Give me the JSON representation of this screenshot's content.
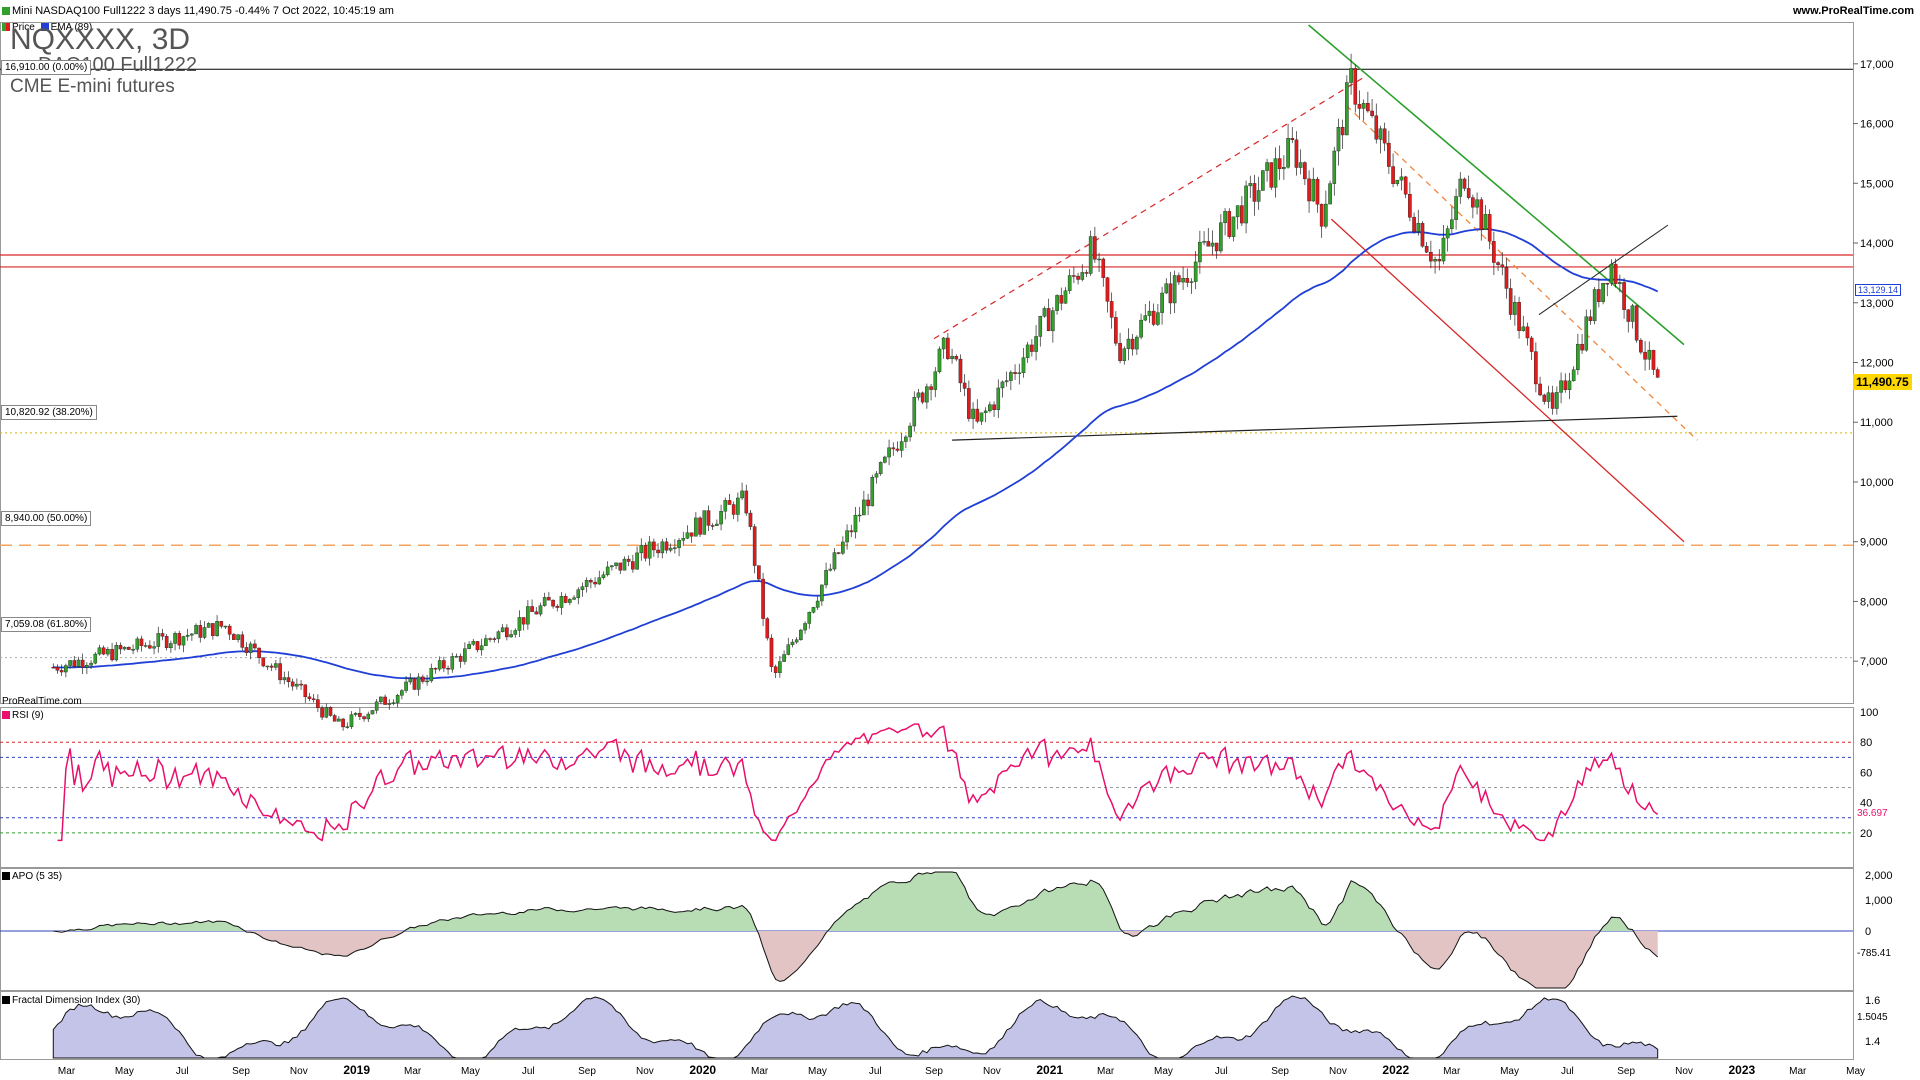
{
  "header": {
    "instrument": "Mini NASDAQ100 Full1222 3 days 11,490.75 -0.44% 7 Oct 2022, 10:45:19 am",
    "site": "www.ProRealTime.com",
    "watermark_symbol": "NQXXXX, 3D",
    "watermark_name": "DAQ100 Full1222",
    "watermark_desc": "CME E-mini futures",
    "legend_price": "Price",
    "legend_ema": "EMA (89)",
    "footer_brand": "ProRealTime.com"
  },
  "colors": {
    "up": "#33a02c",
    "down": "#e31a1c",
    "ema": "#1f3fd6",
    "rsi": "#e8106a",
    "resistance": "#d62728",
    "fib_dash": "#f4a460",
    "green_line": "#2ca02c",
    "apo_pos": "#b8dcb4",
    "apo_neg": "#e2c4c4",
    "fdi_fill": "#c4c4e8"
  },
  "levels": {
    "top_box": "16,910.00 (0.00%)",
    "fib_382": "10,820.92 (38.20%)",
    "fib_500": "8,940.00 (50.00%)",
    "fib_618": "7,059.08 (61.80%)",
    "ema_label": "13,129.14",
    "price_label": "11,490.75",
    "rsi_label": "36.697",
    "apo_label": "-785.41",
    "fdi_label": "1.5045"
  },
  "indicators": {
    "rsi_title": "RSI (9)",
    "apo_title": "APO (5 35)",
    "fdi_title": "Fractal Dimension Index (30)"
  },
  "price_axis": [
    "17,000",
    "16,000",
    "15,000",
    "14,000",
    "13,000",
    "12,000",
    "11,000",
    "10,000",
    "9,000",
    "8,000",
    "7,000"
  ],
  "rsi_axis": [
    "100",
    "80",
    "60",
    "40",
    "20"
  ],
  "apo_axis": [
    "2,000",
    "1,000",
    "0"
  ],
  "fdi_axis": [
    "1.6",
    "1.4"
  ],
  "time_axis": [
    "Mar",
    "May",
    "Jul",
    "Sep",
    "Nov",
    "2019",
    "Mar",
    "May",
    "Jul",
    "Sep",
    "Nov",
    "2020",
    "Mar",
    "May",
    "Jul",
    "Sep",
    "Nov",
    "2021",
    "Mar",
    "May",
    "Jul",
    "Sep",
    "Nov",
    "2022",
    "Mar",
    "May",
    "Jul",
    "Sep",
    "Nov",
    "2023",
    "Mar",
    "May"
  ],
  "chart_data": {
    "type": "candlestick",
    "title": "Mini NASDAQ100 Full1222 3 days",
    "y_range": [
      6300,
      17700
    ],
    "key_points": [
      {
        "date": "2018-02",
        "price": 6900
      },
      {
        "date": "2018-08",
        "price": 7600
      },
      {
        "date": "2018-12",
        "price": 5900
      },
      {
        "date": "2019-07",
        "price": 7900
      },
      {
        "date": "2020-02",
        "price": 9700
      },
      {
        "date": "2020-03",
        "price": 6700
      },
      {
        "date": "2020-09",
        "price": 12300
      },
      {
        "date": "2020-10",
        "price": 10900
      },
      {
        "date": "2021-02",
        "price": 13900
      },
      {
        "date": "2021-03",
        "price": 12200
      },
      {
        "date": "2021-09",
        "price": 15600
      },
      {
        "date": "2021-10",
        "price": 14500
      },
      {
        "date": "2021-11",
        "price": 16700
      },
      {
        "date": "2022-02",
        "price": 13600
      },
      {
        "date": "2022-03",
        "price": 15200
      },
      {
        "date": "2022-06",
        "price": 11100
      },
      {
        "date": "2022-08",
        "price": 13700
      },
      {
        "date": "2022-10",
        "price": 11490.75
      }
    ],
    "ema_89": {
      "last": 13129.14
    },
    "horizontal_levels": [
      16910,
      13800,
      13600,
      10820.92,
      8940,
      7059.08
    ],
    "rsi_9": {
      "last": 36.697,
      "levels": [
        80,
        70,
        50,
        30,
        20
      ]
    },
    "apo_5_35": {
      "last": -785.41
    },
    "fdi_30": {
      "last": 1.5045
    }
  }
}
